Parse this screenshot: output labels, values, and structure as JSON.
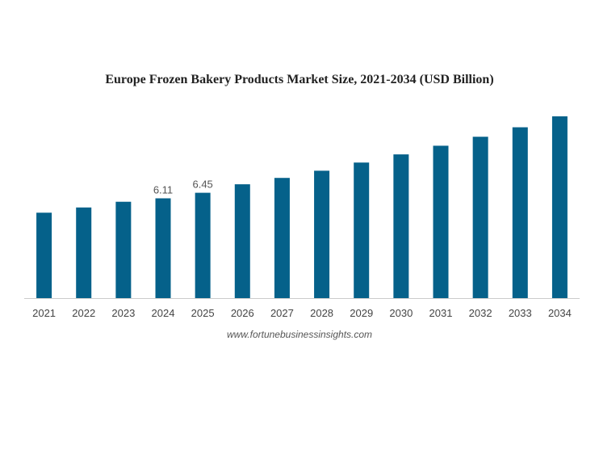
{
  "chart_data": {
    "type": "bar",
    "title": "Europe Frozen Bakery Products Market Size, 2021-2034 (USD Billion)",
    "categories": [
      "2021",
      "2022",
      "2023",
      "2024",
      "2025",
      "2026",
      "2027",
      "2028",
      "2029",
      "2030",
      "2031",
      "2032",
      "2033",
      "2034"
    ],
    "series": [
      {
        "values": [
          5.23,
          5.55,
          5.9,
          6.11,
          6.45,
          6.97,
          7.36,
          7.8,
          8.3,
          8.8,
          9.33,
          9.88,
          10.46,
          11.13
        ]
      }
    ],
    "data_labels": [
      {
        "category": "2024",
        "text": "6.11"
      },
      {
        "category": "2025",
        "text": "6.45"
      }
    ],
    "xlabel": "",
    "ylabel": "",
    "ylim": [
      0,
      11.13
    ],
    "grid": false,
    "legend": "none",
    "colors": {
      "bar": "#05618a",
      "axis": "#cccccc",
      "tick_text": "#444444",
      "label_text": "#555555"
    }
  },
  "source": "www.fortunebusinessinsights.com"
}
